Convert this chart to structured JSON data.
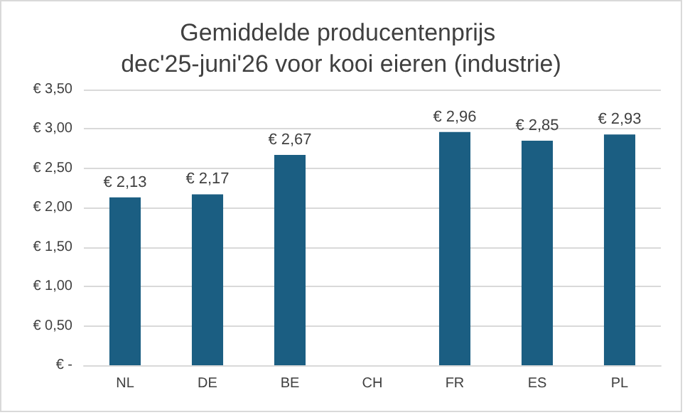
{
  "chart_data": {
    "type": "bar",
    "title": "Gemiddelde producentenprijs dec'25-juni'26 voor kooi eieren (industrie)",
    "categories": [
      "NL",
      "DE",
      "BE",
      "CH",
      "FR",
      "ES",
      "PL"
    ],
    "values": [
      2.13,
      2.17,
      2.67,
      null,
      2.96,
      2.85,
      2.93
    ],
    "value_labels": [
      "€ 2,13",
      "€ 2,17",
      "€ 2,67",
      null,
      "€ 2,96",
      "€ 2,85",
      "€ 2,93"
    ],
    "color": "#1b5e82",
    "ylim": [
      0,
      3.5
    ],
    "yticks": [
      {
        "value": 0,
        "label": "€ -"
      },
      {
        "value": 0.5,
        "label": "€ 0,50"
      },
      {
        "value": 1,
        "label": "€ 1,00"
      },
      {
        "value": 1.5,
        "label": "€ 1,50"
      },
      {
        "value": 2,
        "label": "€ 2,00"
      },
      {
        "value": 2.5,
        "label": "€ 2,50"
      },
      {
        "value": 3,
        "label": "€ 3,00"
      },
      {
        "value": 3.5,
        "label": "€ 3,50"
      }
    ],
    "grid": "y"
  }
}
